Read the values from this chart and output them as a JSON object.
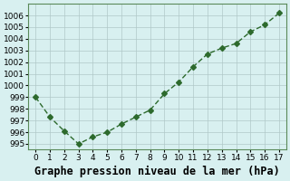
{
  "x": [
    0,
    1,
    2,
    3,
    4,
    5,
    6,
    7,
    8,
    9,
    10,
    11,
    12,
    13,
    14,
    15,
    16,
    17
  ],
  "y": [
    999.0,
    997.3,
    996.1,
    995.0,
    995.6,
    996.0,
    996.7,
    997.3,
    997.9,
    999.3,
    1000.3,
    1001.6,
    1002.7,
    1003.2,
    1003.6,
    1004.6,
    1005.2,
    1006.2
  ],
  "xlabel": "Graphe pression niveau de la mer (hPa)",
  "ylim": [
    994.5,
    1007.0
  ],
  "xlim": [
    -0.5,
    17.5
  ],
  "yticks": [
    995,
    996,
    997,
    998,
    999,
    1000,
    1001,
    1002,
    1003,
    1004,
    1005,
    1006
  ],
  "xticks": [
    0,
    1,
    2,
    3,
    4,
    5,
    6,
    7,
    8,
    9,
    10,
    11,
    12,
    13,
    14,
    15,
    16,
    17
  ],
  "line_color": "#2d6a2d",
  "marker_color": "#2d6a2d",
  "bg_color": "#d8f0f0",
  "grid_color": "#b0c8c8",
  "xlabel_fontsize": 8.5,
  "tick_fontsize": 6.5
}
